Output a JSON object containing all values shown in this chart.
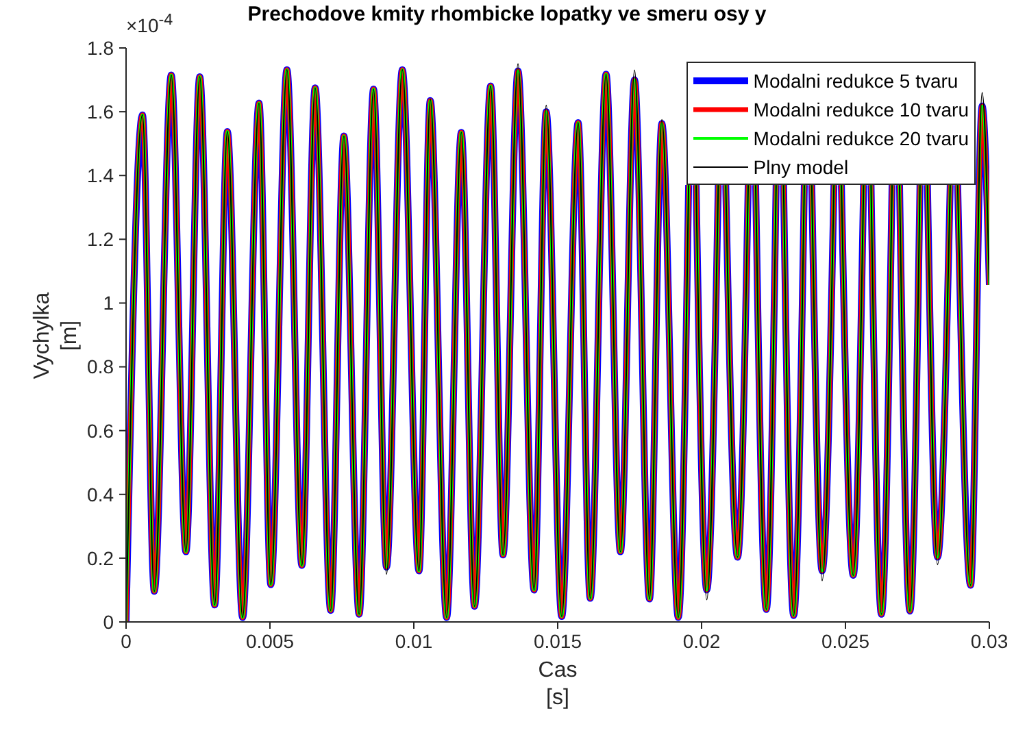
{
  "chart_data": {
    "type": "line",
    "title": "Prechodove kmity rhombicke lopatky ve smeru osy y",
    "xlabel": "Cas\n[s]",
    "ylabel": "Vychylka\n[m]",
    "annotations": [
      "×10$^{-4}$"
    ],
    "x": [
      0,
      0.00057,
      0.00098,
      0.00157,
      0.00208,
      0.00256,
      0.00308,
      0.00352,
      0.00405,
      0.00462,
      0.00503,
      0.00559,
      0.00611,
      0.00657,
      0.00711,
      0.00757,
      0.0081,
      0.0086,
      0.00905,
      0.0096,
      0.01018,
      0.01057,
      0.01114,
      0.01165,
      0.01211,
      0.01267,
      0.0131,
      0.01362,
      0.01418,
      0.0146,
      0.01514,
      0.01571,
      0.01613,
      0.01668,
      0.01718,
      0.01767,
      0.01819,
      0.01862,
      0.01919,
      0.01955,
      0.01968,
      0.01981,
      0.02018,
      0.02058,
      0.02071,
      0.02084,
      0.02125,
      0.02162,
      0.02175,
      0.02188,
      0.02225,
      0.02259,
      0.02272,
      0.02285,
      0.0232,
      0.02357,
      0.0237,
      0.02383,
      0.02419,
      0.0246,
      0.02473,
      0.02486,
      0.02527,
      0.02563,
      0.02576,
      0.02589,
      0.02625,
      0.02662,
      0.02675,
      0.02688,
      0.02724,
      0.02759,
      0.02772,
      0.02785,
      0.0282,
      0.02864,
      0.02877,
      0.0289,
      0.02935,
      0.02975,
      0.03
    ],
    "series": [
      {
        "name": "Modalni redukce 5 tvaru",
        "color": "#0000ff",
        "values": [
          0,
          1.59,
          0.096,
          1.715,
          0.22,
          1.71,
          0.053,
          1.538,
          0.014,
          1.627,
          0.117,
          1.732,
          0.177,
          1.675,
          0.036,
          1.524,
          0.024,
          1.671,
          0.172,
          1.732,
          0.16,
          1.635,
          0.014,
          1.535,
          0.049,
          1.681,
          0.21,
          1.728,
          0.1,
          1.6,
          0.017,
          1.566,
          0.074,
          1.718,
          0.22,
          1.7,
          0.072,
          1.563,
          0.014,
          1.37,
          null,
          1.37,
          0.1,
          1.37,
          null,
          1.37,
          0.203,
          1.37,
          null,
          1.37,
          0.039,
          1.37,
          null,
          1.37,
          0.02,
          1.37,
          null,
          1.37,
          0.16,
          1.37,
          null,
          1.37,
          0.146,
          1.37,
          null,
          1.37,
          0.024,
          1.37,
          null,
          1.37,
          0.034,
          1.37,
          null,
          1.37,
          0.203,
          1.37,
          null,
          1.37,
          0.115,
          1.618,
          1.057
        ]
      },
      {
        "name": "Modalni redukce 10 tvaru",
        "color": "#ff0000",
        "values": [
          0,
          1.59,
          0.096,
          1.715,
          0.22,
          1.71,
          0.053,
          1.538,
          0.014,
          1.627,
          0.117,
          1.732,
          0.177,
          1.675,
          0.036,
          1.524,
          0.024,
          1.671,
          0.172,
          1.732,
          0.16,
          1.635,
          0.014,
          1.535,
          0.049,
          1.681,
          0.21,
          1.728,
          0.1,
          1.6,
          0.017,
          1.566,
          0.074,
          1.718,
          0.22,
          1.7,
          0.072,
          1.563,
          0.014,
          1.37,
          null,
          1.37,
          0.1,
          1.37,
          null,
          1.37,
          0.203,
          1.37,
          null,
          1.37,
          0.039,
          1.37,
          null,
          1.37,
          0.02,
          1.37,
          null,
          1.37,
          0.16,
          1.37,
          null,
          1.37,
          0.146,
          1.37,
          null,
          1.37,
          0.024,
          1.37,
          null,
          1.37,
          0.034,
          1.37,
          null,
          1.37,
          0.203,
          1.37,
          null,
          1.37,
          0.115,
          1.618,
          1.057
        ]
      },
      {
        "name": "Modalni redukce 20 tvaru",
        "color": "#00ff00",
        "values": [
          0,
          1.59,
          0.096,
          1.715,
          0.22,
          1.71,
          0.053,
          1.538,
          0.014,
          1.627,
          0.117,
          1.732,
          0.177,
          1.675,
          0.036,
          1.524,
          0.024,
          1.671,
          0.172,
          1.732,
          0.16,
          1.635,
          0.014,
          1.535,
          0.049,
          1.681,
          0.21,
          1.728,
          0.1,
          1.6,
          0.017,
          1.566,
          0.074,
          1.718,
          0.22,
          1.7,
          0.072,
          1.563,
          0.014,
          1.37,
          null,
          1.37,
          0.1,
          1.37,
          null,
          1.37,
          0.203,
          1.37,
          null,
          1.37,
          0.039,
          1.37,
          null,
          1.37,
          0.02,
          1.37,
          null,
          1.37,
          0.16,
          1.37,
          null,
          1.37,
          0.146,
          1.37,
          null,
          1.37,
          0.024,
          1.37,
          null,
          1.37,
          0.034,
          1.37,
          null,
          1.37,
          0.203,
          1.37,
          null,
          1.37,
          0.115,
          1.618,
          1.057
        ]
      },
      {
        "name": "Plny model",
        "color": "#000000",
        "values": [
          0,
          1.59,
          0.096,
          1.715,
          0.22,
          1.71,
          0.053,
          1.538,
          0.014,
          1.627,
          0.117,
          1.732,
          0.177,
          1.675,
          0.036,
          1.524,
          0.024,
          1.671,
          0.15,
          1.732,
          0.16,
          1.64,
          0.014,
          1.535,
          0.049,
          1.681,
          0.21,
          1.75,
          0.1,
          1.62,
          0.017,
          1.566,
          0.074,
          1.718,
          0.22,
          1.73,
          0.072,
          1.575,
          0.014,
          1.37,
          null,
          1.37,
          0.07,
          1.37,
          null,
          1.37,
          0.203,
          1.37,
          null,
          1.37,
          0.039,
          1.37,
          null,
          1.37,
          0.02,
          1.37,
          null,
          1.37,
          0.13,
          1.37,
          null,
          1.37,
          0.146,
          1.37,
          null,
          1.37,
          0.024,
          1.37,
          null,
          1.37,
          0.034,
          1.37,
          null,
          1.37,
          0.18,
          1.37,
          null,
          1.37,
          0.115,
          1.66,
          1.057
        ]
      }
    ],
    "xlim": [
      0,
      0.03
    ],
    "xticks": [
      0,
      0.005,
      0.01,
      0.015,
      0.02,
      0.025,
      0.03
    ],
    "ylim": [
      0,
      1.8
    ],
    "yticks": [
      0,
      0.2,
      0.4,
      0.6,
      0.8,
      1,
      1.2,
      1.4,
      1.6,
      1.8
    ],
    "legend": "top right",
    "grid": false
  }
}
